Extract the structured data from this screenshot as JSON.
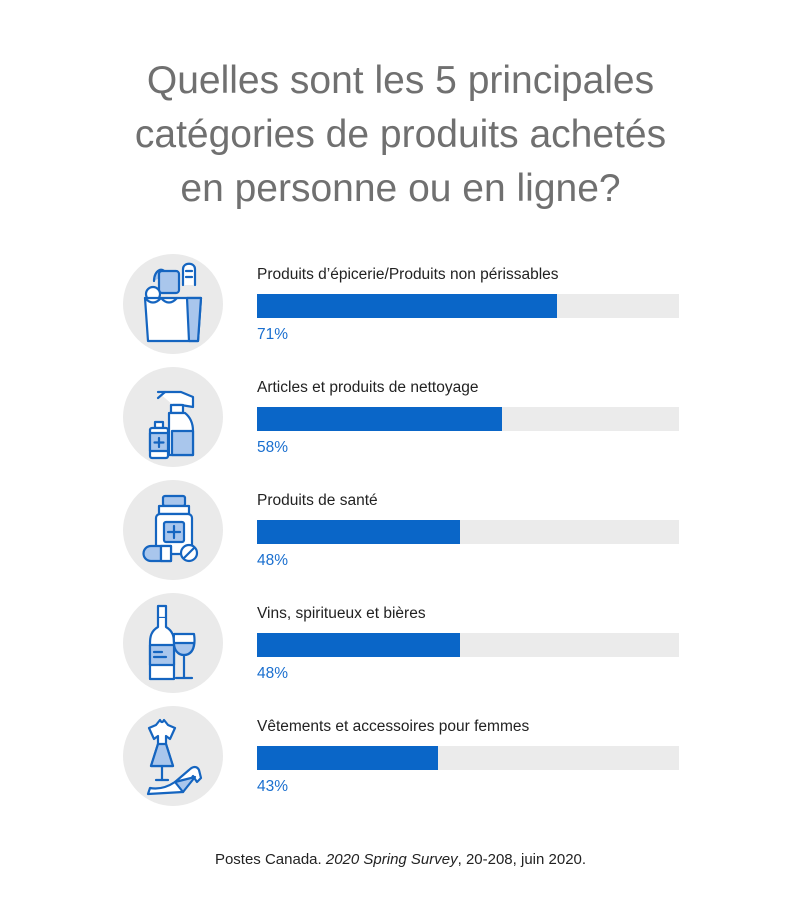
{
  "title_lines": [
    "Quelles sont les 5 principales",
    "catégories de produits achetés",
    "en personne ou en ligne?"
  ],
  "colors": {
    "bar": "#0a66c8",
    "track": "#ebebeb",
    "percent_text": "#1a6fcf",
    "icon_stroke": "#1565c0",
    "icon_fill": "#a9c6ec",
    "icon_bg": "#eaeaea"
  },
  "chart_data": {
    "type": "bar",
    "orientation": "horizontal",
    "title": "Quelles sont les 5 principales catégories de produits achetés en personne ou en ligne?",
    "xlim": [
      0,
      100
    ],
    "categories": [
      "Produits d’épicerie/Produits non périssables",
      "Articles et produits de nettoyage",
      "Produits de santé",
      "Vins, spiritueux et bières",
      "Vêtements et accessoires pour femmes"
    ],
    "values": [
      71,
      58,
      48,
      48,
      43
    ],
    "value_labels": [
      "71%",
      "58%",
      "48%",
      "48%",
      "43%"
    ],
    "icons": [
      "grocery-bag-icon",
      "spray-bottle-icon",
      "medicine-bottle-icon",
      "wine-bottle-icon",
      "dress-shoe-icon"
    ]
  },
  "source": {
    "prefix": "Postes Canada. ",
    "italic": "2020 Spring Survey",
    "suffix": ", 20-208, juin 2020."
  }
}
